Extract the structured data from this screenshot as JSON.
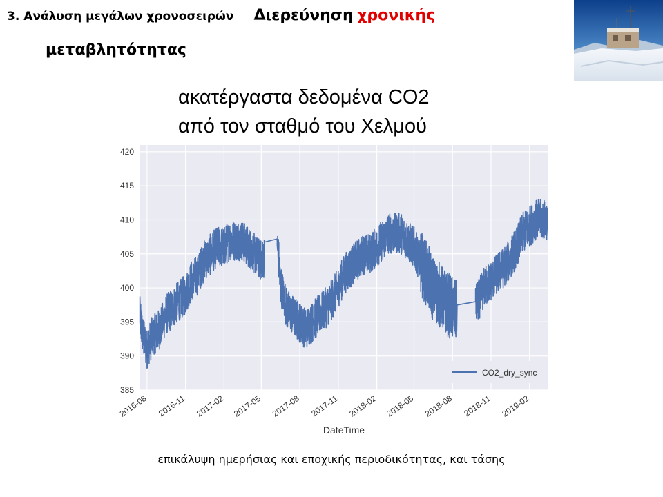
{
  "slide": {
    "section_label": "3. Ανάλυση μεγάλων χρονοσειρών",
    "heading_main": "Διερεύνηση",
    "heading_highlight": "χρονικής",
    "heading_line2": "μεταβλητότητας",
    "caption": "επικάλυψη ημερήσιας και εποχικής περιοδικότητας, και τάσης",
    "colors": {
      "highlight": "#e00000",
      "series": "#4c72b0",
      "plot_bg": "#eaeaf2"
    }
  },
  "chart_data": {
    "type": "line",
    "title_line1": "ακατέργαστα δεδομένα CO2",
    "title_line2": "από τον σταθμό του Χελμού",
    "xlabel": "DateTime",
    "ylabel": "",
    "ylim": [
      385,
      421
    ],
    "yticks": [
      385,
      390,
      395,
      400,
      405,
      410,
      415,
      420
    ],
    "xlim": [
      "2016-07-14",
      "2019-03-18"
    ],
    "xticks": [
      "2016-08",
      "2016-11",
      "2017-02",
      "2017-05",
      "2017-08",
      "2017-11",
      "2018-02",
      "2018-05",
      "2018-08",
      "2018-11",
      "2019-02"
    ],
    "grid": true,
    "legend": {
      "position": "bottom-right"
    },
    "series": [
      {
        "name": "CO2_dry_sync",
        "color": "#4c72b0",
        "x": [
          "2016-07-15",
          "2016-07-22",
          "2016-08-01",
          "2016-08-15",
          "2016-09-01",
          "2016-09-15",
          "2016-10-01",
          "2016-10-15",
          "2016-11-01",
          "2016-11-15",
          "2016-12-01",
          "2016-12-15",
          "2017-01-01",
          "2017-01-15",
          "2017-02-01",
          "2017-02-15",
          "2017-03-01",
          "2017-03-15",
          "2017-04-01",
          "2017-04-15",
          "2017-05-01",
          "2017-05-15",
          "2017-06-01",
          "2017-06-10",
          "2017-06-15",
          "2017-07-01",
          "2017-07-15",
          "2017-08-01",
          "2017-08-15",
          "2017-09-01",
          "2017-09-15",
          "2017-10-01",
          "2017-10-15",
          "2017-11-01",
          "2017-11-15",
          "2017-12-01",
          "2017-12-15",
          "2018-01-01",
          "2018-01-15",
          "2018-02-01",
          "2018-02-15",
          "2018-03-01",
          "2018-03-15",
          "2018-04-01",
          "2018-04-15",
          "2018-05-01",
          "2018-05-15",
          "2018-06-01",
          "2018-06-15",
          "2018-07-01",
          "2018-07-15",
          "2018-08-01",
          "2018-08-15",
          "2018-09-01",
          "2018-09-15",
          "2018-10-01",
          "2018-10-15",
          "2018-11-01",
          "2018-11-15",
          "2018-12-01",
          "2018-12-15",
          "2019-01-01",
          "2019-01-15",
          "2019-02-01",
          "2019-02-15",
          "2019-03-01",
          "2019-03-15"
        ],
        "y": [
          396,
          393,
          391,
          393,
          394,
          396,
          397,
          398,
          399,
          401,
          402,
          404,
          405,
          406,
          406,
          407,
          407,
          407,
          406,
          405,
          404,
          405,
          407,
          406,
          401,
          397,
          396,
          395,
          394,
          395,
          396,
          397,
          398,
          400,
          402,
          403,
          404,
          405,
          405,
          406,
          407,
          408,
          408,
          408,
          407,
          406,
          404,
          402,
          400,
          399,
          398,
          397,
          396,
          396,
          397,
          398,
          400,
          401,
          402,
          403,
          404,
          406,
          408,
          409,
          410,
          410,
          410
        ]
      }
    ]
  }
}
